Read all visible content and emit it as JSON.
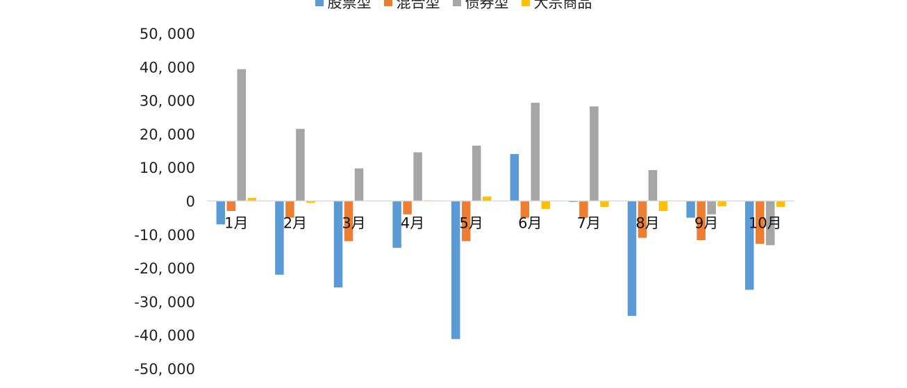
{
  "chart_data": {
    "type": "bar",
    "title": "",
    "xlabel": "",
    "ylabel": "",
    "ylim": [
      -50000,
      50000
    ],
    "yticks": [
      50000,
      40000,
      30000,
      20000,
      10000,
      0,
      -10000,
      -20000,
      -30000,
      -40000,
      -50000
    ],
    "ytick_labels": [
      "50, 000",
      "40, 000",
      "30, 000",
      "20, 000",
      "10, 000",
      "0",
      "-10, 000",
      "-20, 000",
      "-30, 000",
      "-40, 000",
      "-50, 000"
    ],
    "grid": false,
    "legend_position": "top",
    "categories": [
      "1月",
      "2月",
      "3月",
      "4月",
      "5月",
      "6月",
      "7月",
      "8月",
      "9月",
      "10月"
    ],
    "series": [
      {
        "name": "股票型",
        "color": "#5B9BD5",
        "values": [
          -7000,
          -22000,
          -25800,
          -14000,
          -41200,
          14000,
          -300,
          -34300,
          -5000,
          -26500
        ]
      },
      {
        "name": "混合型",
        "color": "#ED7D31",
        "values": [
          -3000,
          -5000,
          -12000,
          -4000,
          -12000,
          -5000,
          -5000,
          -11000,
          -11700,
          -12800
        ]
      },
      {
        "name": "债券型",
        "color": "#A5A5A5",
        "values": [
          39300,
          21500,
          9700,
          14500,
          16500,
          29300,
          28200,
          9200,
          -4000,
          -13200
        ]
      },
      {
        "name": "大宗商品",
        "color": "#FFC000",
        "values": [
          900,
          -600,
          100,
          200,
          1300,
          -2400,
          -1800,
          -3000,
          -1600,
          -1800
        ]
      }
    ]
  }
}
